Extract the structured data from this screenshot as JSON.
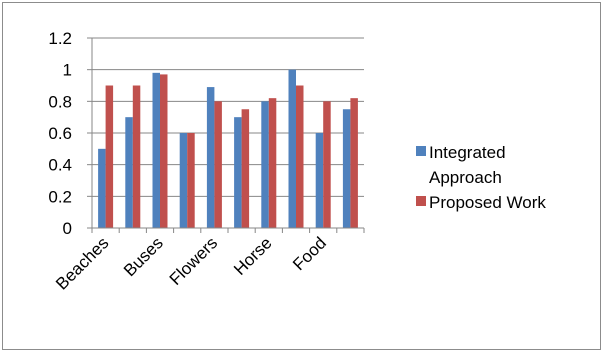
{
  "chart_data": {
    "type": "bar",
    "categories": [
      "Beaches",
      "",
      "Buses",
      "",
      "Flowers",
      "",
      "Horse",
      "",
      "Food",
      ""
    ],
    "series": [
      {
        "name": "Integrated Approach",
        "color": "#4f81bd",
        "values": [
          0.5,
          0.7,
          0.98,
          0.6,
          0.89,
          0.7,
          0.8,
          1.0,
          0.6,
          0.75
        ]
      },
      {
        "name": "Proposed Work",
        "color": "#c0504d",
        "values": [
          0.9,
          0.9,
          0.97,
          0.6,
          0.8,
          0.75,
          0.82,
          0.9,
          0.8,
          0.82
        ]
      }
    ],
    "ylim": [
      0,
      1.2
    ],
    "yticks": [
      "0",
      "0.2",
      "0.4",
      "0.6",
      "0.8",
      "1",
      "1.2"
    ],
    "grid": true,
    "legend": "right",
    "legend_items": [
      {
        "line1": "Integrated",
        "line2": "Approach"
      },
      {
        "line1": "Proposed Work",
        "line2": ""
      }
    ]
  }
}
